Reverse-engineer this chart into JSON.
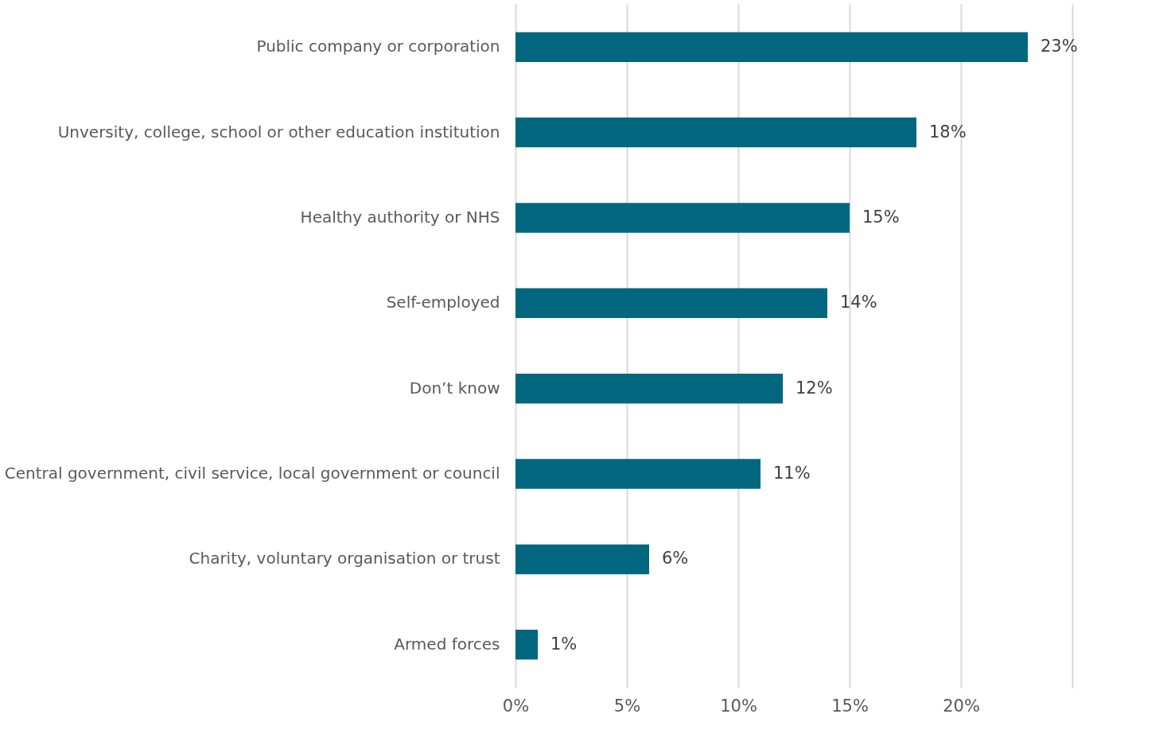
{
  "chart_data": {
    "type": "bar",
    "orientation": "horizontal",
    "categories": [
      "Public company or corporation",
      "Unversity, college, school or other education institution",
      "Healthy authority or NHS",
      "Self-employed",
      "Don’t know",
      "Central government, civil service, local government or council",
      "Charity, voluntary organisation or trust",
      "Armed forces"
    ],
    "values": [
      23,
      18,
      15,
      14,
      12,
      11,
      6,
      1
    ],
    "value_labels": [
      "23%",
      "18%",
      "15%",
      "14%",
      "12%",
      "11%",
      "6%",
      "1%"
    ],
    "color": "#00677f",
    "xlim": [
      0,
      25
    ],
    "xticks": [
      {
        "value": 0,
        "label": "0%"
      },
      {
        "value": 5,
        "label": "5%"
      },
      {
        "value": 10,
        "label": "10%"
      },
      {
        "value": 15,
        "label": "15%"
      },
      {
        "value": 20,
        "label": "20%"
      },
      {
        "value": 25,
        "label": null
      }
    ],
    "grid": "x"
  }
}
